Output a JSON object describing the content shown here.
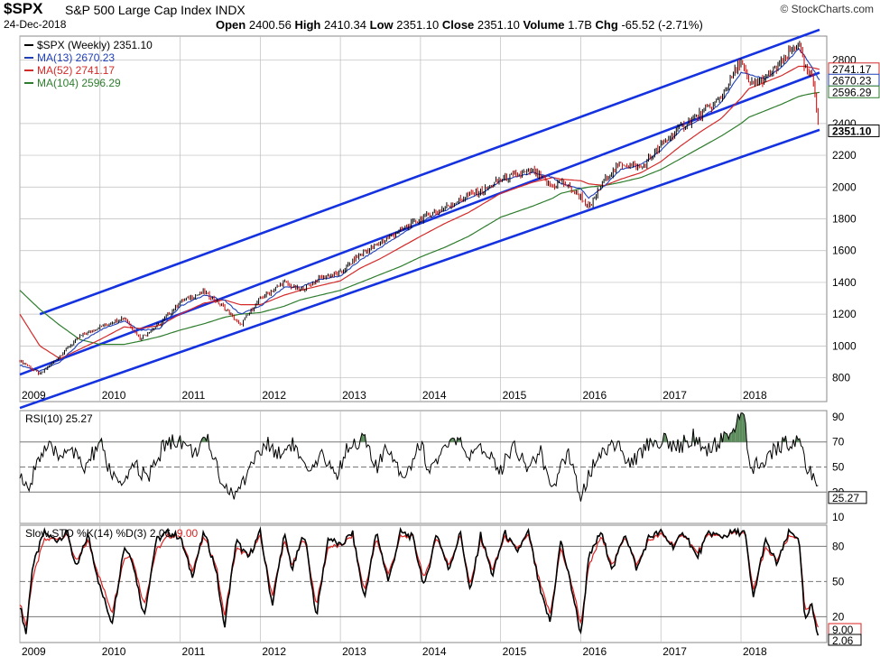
{
  "header": {
    "ticker": "$SPX",
    "full_name": "S&P 500 Large Cap Index",
    "exchange": "INDX",
    "date": "24-Dec-2018",
    "open_label": "Open",
    "open": "2400.56",
    "high_label": "High",
    "high": "2410.34",
    "low_label": "Low",
    "low": "2351.10",
    "close_label": "Close",
    "close": "2351.10",
    "volume_label": "Volume",
    "volume": "1.7B",
    "chg_label": "Chg",
    "chg": "-65.52",
    "chg_pct": "(-2.71%)",
    "copyright": "© StockCharts.com"
  },
  "colors": {
    "price_bar": "#000000",
    "down_bar": "#cc0000",
    "ma13": "#1f3fb8",
    "ma52": "#d42a2a",
    "ma104": "#2e7d2e",
    "trendline": "#1432e0",
    "rsi_fill": "#5a8a5a",
    "pct_k": "#000000",
    "pct_d": "#dd2222"
  },
  "chart_data": [
    {
      "type": "line",
      "panel": "price",
      "legend": [
        {
          "label": "$SPX (Weekly) 2351.10",
          "color": "#000000"
        },
        {
          "label": "MA(13) 2670.23",
          "color": "#1f3fb8"
        },
        {
          "label": "MA(52) 2741.17",
          "color": "#d42a2a"
        },
        {
          "label": "MA(104) 2596.29",
          "color": "#2e7d2e"
        }
      ],
      "x_ticks": [
        "2009",
        "2010",
        "2011",
        "2012",
        "2013",
        "2014",
        "2015",
        "2016",
        "2017",
        "2018"
      ],
      "y_ticks": [
        800,
        1000,
        1200,
        1400,
        1600,
        1800,
        2000,
        2200,
        2400,
        2800
      ],
      "ylim": [
        650,
        2950
      ],
      "price_labels": [
        {
          "text": "2741.17",
          "value": 2741.17,
          "color": "#d42a2a"
        },
        {
          "text": "2670.23",
          "value": 2670.23,
          "color": "#1f3fb8"
        },
        {
          "text": "2596.29",
          "value": 2596.29,
          "color": "#2e7d2e"
        },
        {
          "text": "2351.10",
          "value": 2351.1,
          "color": "#000000",
          "bold": true
        }
      ],
      "anchor_x": [
        2009.0,
        2009.25,
        2009.5,
        2009.75,
        2010.0,
        2010.3,
        2010.5,
        2010.75,
        2011.0,
        2011.3,
        2011.55,
        2011.75,
        2012.0,
        2012.3,
        2012.5,
        2012.75,
        2013.0,
        2013.25,
        2013.5,
        2013.75,
        2014.0,
        2014.3,
        2014.6,
        2014.8,
        2015.0,
        2015.4,
        2015.65,
        2015.75,
        2016.0,
        2016.1,
        2016.3,
        2016.5,
        2016.75,
        2017.0,
        2017.25,
        2017.5,
        2017.75,
        2018.0,
        2018.1,
        2018.3,
        2018.5,
        2018.72,
        2018.8,
        2018.9,
        2018.98
      ],
      "price_anchor": [
        910,
        820,
        940,
        1060,
        1120,
        1180,
        1050,
        1140,
        1280,
        1340,
        1240,
        1130,
        1300,
        1400,
        1350,
        1430,
        1460,
        1580,
        1650,
        1730,
        1800,
        1870,
        1950,
        1980,
        2050,
        2100,
        2000,
        2040,
        1940,
        1860,
        2050,
        2150,
        2120,
        2260,
        2380,
        2460,
        2560,
        2800,
        2640,
        2680,
        2780,
        2910,
        2740,
        2680,
        2351
      ],
      "ma13_anchor": [
        880,
        840,
        900,
        1020,
        1100,
        1160,
        1100,
        1110,
        1250,
        1320,
        1290,
        1200,
        1250,
        1370,
        1370,
        1420,
        1440,
        1540,
        1620,
        1700,
        1780,
        1850,
        1930,
        1970,
        2040,
        2090,
        2060,
        2020,
        1990,
        1930,
        2010,
        2110,
        2140,
        2230,
        2360,
        2430,
        2530,
        2720,
        2710,
        2680,
        2750,
        2870,
        2820,
        2740,
        2670
      ],
      "ma52_anchor": [
        1200,
        1000,
        920,
        980,
        1040,
        1120,
        1110,
        1130,
        1200,
        1270,
        1290,
        1260,
        1260,
        1320,
        1350,
        1380,
        1410,
        1490,
        1550,
        1620,
        1690,
        1770,
        1840,
        1900,
        1960,
        2030,
        2060,
        2050,
        2040,
        2020,
        2010,
        2050,
        2090,
        2160,
        2260,
        2350,
        2430,
        2560,
        2620,
        2660,
        2700,
        2760,
        2760,
        2750,
        2741
      ],
      "ma104_anchor": [
        1350,
        1230,
        1130,
        1040,
        1010,
        1010,
        1030,
        1060,
        1100,
        1140,
        1180,
        1200,
        1210,
        1250,
        1290,
        1320,
        1350,
        1400,
        1450,
        1500,
        1560,
        1620,
        1690,
        1750,
        1810,
        1880,
        1930,
        1960,
        1990,
        2000,
        2010,
        2030,
        2060,
        2110,
        2180,
        2250,
        2320,
        2400,
        2440,
        2480,
        2520,
        2570,
        2580,
        2590,
        2596
      ]
    },
    {
      "type": "line",
      "panel": "rsi",
      "legend": [
        {
          "label": "RSI(10) 25.27",
          "color": "#000000"
        }
      ],
      "y_ticks": [
        10,
        30,
        50,
        70,
        90
      ],
      "ylim": [
        5,
        95
      ],
      "overbought": 70,
      "oversold": 30,
      "midline": 50,
      "value_label": "25.27",
      "anchor_x": [
        2009.0,
        2009.1,
        2009.2,
        2009.35,
        2009.5,
        2009.6,
        2009.8,
        2010.0,
        2010.1,
        2010.3,
        2010.4,
        2010.6,
        2010.8,
        2011.0,
        2011.15,
        2011.35,
        2011.55,
        2011.7,
        2011.9,
        2012.1,
        2012.25,
        2012.4,
        2012.6,
        2012.8,
        2012.95,
        2013.1,
        2013.3,
        2013.45,
        2013.6,
        2013.8,
        2014.0,
        2014.1,
        2014.3,
        2014.45,
        2014.6,
        2014.8,
        2015.0,
        2015.15,
        2015.35,
        2015.5,
        2015.62,
        2015.85,
        2016.0,
        2016.1,
        2016.3,
        2016.45,
        2016.6,
        2016.85,
        2017.0,
        2017.2,
        2017.4,
        2017.6,
        2017.8,
        2017.95,
        2018.05,
        2018.1,
        2018.3,
        2018.5,
        2018.7,
        2018.8,
        2018.9,
        2018.98
      ],
      "values": [
        45,
        28,
        55,
        65,
        58,
        68,
        48,
        70,
        50,
        30,
        55,
        40,
        68,
        72,
        62,
        70,
        35,
        26,
        55,
        68,
        60,
        70,
        42,
        60,
        42,
        68,
        72,
        48,
        66,
        42,
        70,
        48,
        62,
        74,
        55,
        66,
        48,
        68,
        50,
        62,
        30,
        62,
        28,
        45,
        65,
        70,
        50,
        70,
        72,
        65,
        74,
        62,
        75,
        85,
        92,
        48,
        55,
        68,
        72,
        55,
        40,
        25.27
      ]
    },
    {
      "type": "line",
      "panel": "stochastic",
      "legend": [
        {
          "label": "Slow STO %K(14) %D(3) 2.06,",
          "color": "#000000"
        },
        {
          "label": "9.00",
          "color": "#dd2222"
        }
      ],
      "y_ticks": [
        20,
        50,
        80
      ],
      "ylim": [
        -2,
        98
      ],
      "upper_band": 80,
      "lower_band": 20,
      "midline": 50,
      "value_labels": [
        {
          "text": "9.00",
          "value": 9.0,
          "color": "#dd2222"
        },
        {
          "text": "2.06",
          "value": 2.06,
          "color": "#000000"
        }
      ],
      "x_ticks": [
        "2009",
        "2010",
        "2011",
        "2012",
        "2013",
        "2014",
        "2015",
        "2016",
        "2017",
        "2018"
      ],
      "anchor_x": [
        2009.0,
        2009.08,
        2009.15,
        2009.3,
        2009.45,
        2009.6,
        2009.7,
        2009.85,
        2010.0,
        2010.15,
        2010.3,
        2010.4,
        2010.55,
        2010.7,
        2010.85,
        2011.0,
        2011.15,
        2011.3,
        2011.45,
        2011.55,
        2011.7,
        2011.85,
        2012.0,
        2012.15,
        2012.3,
        2012.4,
        2012.55,
        2012.7,
        2012.85,
        2013.0,
        2013.15,
        2013.3,
        2013.45,
        2013.6,
        2013.75,
        2013.9,
        2014.05,
        2014.2,
        2014.35,
        2014.5,
        2014.62,
        2014.75,
        2014.9,
        2015.05,
        2015.2,
        2015.35,
        2015.5,
        2015.62,
        2015.75,
        2015.9,
        2016.0,
        2016.1,
        2016.25,
        2016.4,
        2016.55,
        2016.7,
        2016.85,
        2017.0,
        2017.15,
        2017.3,
        2017.45,
        2017.6,
        2017.75,
        2017.9,
        2018.05,
        2018.15,
        2018.3,
        2018.45,
        2018.6,
        2018.72,
        2018.8,
        2018.88,
        2018.95,
        2018.98
      ],
      "k_values": [
        30,
        5,
        60,
        92,
        85,
        92,
        60,
        90,
        45,
        15,
        80,
        70,
        20,
        85,
        92,
        88,
        55,
        92,
        60,
        10,
        85,
        70,
        92,
        30,
        90,
        60,
        92,
        20,
        88,
        80,
        92,
        35,
        92,
        50,
        92,
        88,
        45,
        92,
        60,
        92,
        40,
        90,
        55,
        92,
        75,
        92,
        40,
        15,
        85,
        40,
        5,
        70,
        92,
        60,
        92,
        60,
        88,
        92,
        80,
        92,
        70,
        92,
        88,
        92,
        92,
        35,
        85,
        65,
        92,
        88,
        15,
        30,
        8,
        2.06
      ],
      "d_values": [
        32,
        12,
        50,
        85,
        87,
        89,
        66,
        85,
        52,
        24,
        70,
        72,
        30,
        76,
        89,
        88,
        60,
        88,
        64,
        20,
        78,
        72,
        88,
        38,
        84,
        64,
        88,
        30,
        80,
        80,
        89,
        42,
        86,
        56,
        88,
        88,
        52,
        88,
        64,
        89,
        46,
        86,
        60,
        88,
        78,
        89,
        46,
        22,
        78,
        45,
        14,
        62,
        88,
        64,
        89,
        64,
        85,
        90,
        82,
        90,
        74,
        90,
        88,
        91,
        91,
        42,
        78,
        68,
        88,
        88,
        24,
        30,
        14,
        9.0
      ]
    }
  ]
}
